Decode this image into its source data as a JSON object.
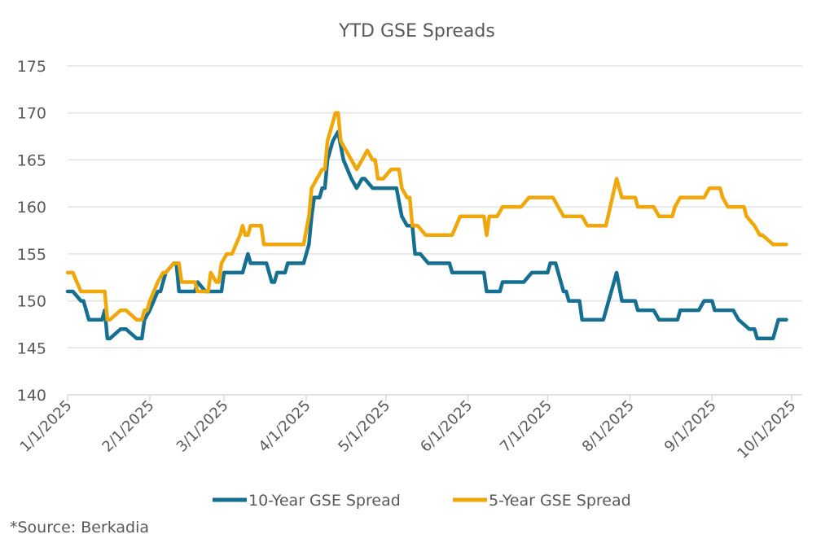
{
  "chart_data": {
    "type": "line",
    "title": "YTD GSE Spreads",
    "xlabel": "",
    "ylabel": "",
    "ylim": [
      140,
      175
    ],
    "yticks": [
      140,
      145,
      150,
      155,
      160,
      165,
      170,
      175
    ],
    "x_unit": "days since 1/1/2025",
    "xlim": [
      0,
      277
    ],
    "xticks": [
      {
        "day": 0,
        "label": "1/1/2025"
      },
      {
        "day": 31,
        "label": "2/1/2025"
      },
      {
        "day": 59,
        "label": "3/1/2025"
      },
      {
        "day": 90,
        "label": "4/1/2025"
      },
      {
        "day": 120,
        "label": "5/1/2025"
      },
      {
        "day": 151,
        "label": "6/1/2025"
      },
      {
        "day": 181,
        "label": "7/1/2025"
      },
      {
        "day": 212,
        "label": "8/1/2025"
      },
      {
        "day": 243,
        "label": "9/1/2025"
      },
      {
        "day": 273,
        "label": "10/1/2025"
      }
    ],
    "grid": true,
    "legend_position": "bottom",
    "series": [
      {
        "name": "10-Year GSE Spread",
        "color": "#156f91",
        "points": [
          [
            0,
            151
          ],
          [
            2,
            151
          ],
          [
            5,
            150
          ],
          [
            6,
            150
          ],
          [
            8,
            148
          ],
          [
            13,
            148
          ],
          [
            14,
            149
          ],
          [
            15,
            146
          ],
          [
            16,
            146
          ],
          [
            20,
            147
          ],
          [
            22,
            147
          ],
          [
            26,
            146
          ],
          [
            28,
            146
          ],
          [
            29,
            148
          ],
          [
            31,
            149
          ],
          [
            34,
            151
          ],
          [
            35,
            151
          ],
          [
            37,
            153
          ],
          [
            40,
            154
          ],
          [
            41,
            154
          ],
          [
            42,
            151
          ],
          [
            48,
            151
          ],
          [
            49,
            152
          ],
          [
            52,
            151
          ],
          [
            55,
            151
          ],
          [
            58,
            151
          ],
          [
            59,
            153
          ],
          [
            66,
            153
          ],
          [
            68,
            155
          ],
          [
            69,
            154
          ],
          [
            75,
            154
          ],
          [
            77,
            152
          ],
          [
            78,
            152
          ],
          [
            79,
            153
          ],
          [
            82,
            153
          ],
          [
            83,
            154
          ],
          [
            89,
            154
          ],
          [
            91,
            156
          ],
          [
            92,
            159
          ],
          [
            93,
            161
          ],
          [
            95,
            161
          ],
          [
            96,
            162
          ],
          [
            97,
            162
          ],
          [
            98,
            165
          ],
          [
            100,
            167
          ],
          [
            102,
            168
          ],
          [
            104,
            165
          ],
          [
            107,
            163
          ],
          [
            109,
            162
          ],
          [
            111,
            163
          ],
          [
            112,
            163
          ],
          [
            115,
            162
          ],
          [
            124,
            162
          ],
          [
            126,
            159
          ],
          [
            128,
            158
          ],
          [
            130,
            158
          ],
          [
            131,
            155
          ],
          [
            133,
            155
          ],
          [
            136,
            154
          ],
          [
            144,
            154
          ],
          [
            145,
            153
          ],
          [
            157,
            153
          ],
          [
            158,
            151
          ],
          [
            163,
            151
          ],
          [
            164,
            152
          ],
          [
            172,
            152
          ],
          [
            175,
            153
          ],
          [
            181,
            153
          ],
          [
            182,
            154
          ],
          [
            184,
            154
          ],
          [
            187,
            151
          ],
          [
            188,
            151
          ],
          [
            189,
            150
          ],
          [
            193,
            150
          ],
          [
            194,
            148
          ],
          [
            202,
            148
          ],
          [
            207,
            153
          ],
          [
            209,
            150
          ],
          [
            214,
            150
          ],
          [
            215,
            149
          ],
          [
            221,
            149
          ],
          [
            223,
            148
          ],
          [
            230,
            148
          ],
          [
            231,
            149
          ],
          [
            238,
            149
          ],
          [
            240,
            150
          ],
          [
            243,
            150
          ],
          [
            244,
            149
          ],
          [
            251,
            149
          ],
          [
            253,
            148
          ],
          [
            257,
            147
          ],
          [
            259,
            147
          ],
          [
            260,
            146
          ],
          [
            266,
            146
          ],
          [
            268,
            148
          ],
          [
            271,
            148
          ]
        ]
      },
      {
        "name": "5-Year GSE Spread",
        "color": "#f0a70a",
        "points": [
          [
            0,
            153
          ],
          [
            2,
            153
          ],
          [
            5,
            151
          ],
          [
            14,
            151
          ],
          [
            15,
            148
          ],
          [
            16,
            148
          ],
          [
            20,
            149
          ],
          [
            22,
            149
          ],
          [
            26,
            148
          ],
          [
            28,
            148
          ],
          [
            29,
            149
          ],
          [
            30,
            149
          ],
          [
            31,
            150
          ],
          [
            34,
            152
          ],
          [
            36,
            153
          ],
          [
            37,
            153
          ],
          [
            40,
            154
          ],
          [
            42,
            154
          ],
          [
            43,
            152
          ],
          [
            48,
            152
          ],
          [
            49,
            151
          ],
          [
            53,
            151
          ],
          [
            54,
            153
          ],
          [
            56,
            152
          ],
          [
            57,
            152
          ],
          [
            58,
            154
          ],
          [
            60,
            155
          ],
          [
            62,
            155
          ],
          [
            65,
            157
          ],
          [
            66,
            158
          ],
          [
            67,
            157
          ],
          [
            68,
            157
          ],
          [
            69,
            158
          ],
          [
            73,
            158
          ],
          [
            74,
            156
          ],
          [
            89,
            156
          ],
          [
            91,
            159
          ],
          [
            92,
            162
          ],
          [
            94,
            163
          ],
          [
            96,
            164
          ],
          [
            97,
            164
          ],
          [
            98,
            167
          ],
          [
            99,
            168
          ],
          [
            101,
            170
          ],
          [
            102,
            170
          ],
          [
            103,
            167
          ],
          [
            107,
            165
          ],
          [
            109,
            164
          ],
          [
            111,
            165
          ],
          [
            113,
            166
          ],
          [
            115,
            165
          ],
          [
            116,
            165
          ],
          [
            117,
            163
          ],
          [
            119,
            163
          ],
          [
            122,
            164
          ],
          [
            125,
            164
          ],
          [
            126,
            162
          ],
          [
            128,
            161
          ],
          [
            129,
            161
          ],
          [
            130,
            158
          ],
          [
            132,
            158
          ],
          [
            135,
            157
          ],
          [
            145,
            157
          ],
          [
            148,
            159
          ],
          [
            157,
            159
          ],
          [
            158,
            157
          ],
          [
            159,
            159
          ],
          [
            162,
            159
          ],
          [
            164,
            160
          ],
          [
            171,
            160
          ],
          [
            174,
            161
          ],
          [
            183,
            161
          ],
          [
            187,
            159
          ],
          [
            194,
            159
          ],
          [
            196,
            158
          ],
          [
            203,
            158
          ],
          [
            207,
            163
          ],
          [
            209,
            161
          ],
          [
            214,
            161
          ],
          [
            215,
            160
          ],
          [
            221,
            160
          ],
          [
            223,
            159
          ],
          [
            228,
            159
          ],
          [
            229,
            160
          ],
          [
            231,
            161
          ],
          [
            240,
            161
          ],
          [
            242,
            162
          ],
          [
            246,
            162
          ],
          [
            247,
            161
          ],
          [
            249,
            160
          ],
          [
            255,
            160
          ],
          [
            256,
            159
          ],
          [
            259,
            158
          ],
          [
            261,
            157
          ],
          [
            262,
            157
          ],
          [
            266,
            156
          ],
          [
            271,
            156
          ]
        ]
      }
    ]
  },
  "source_note": "*Source: Berkadia"
}
